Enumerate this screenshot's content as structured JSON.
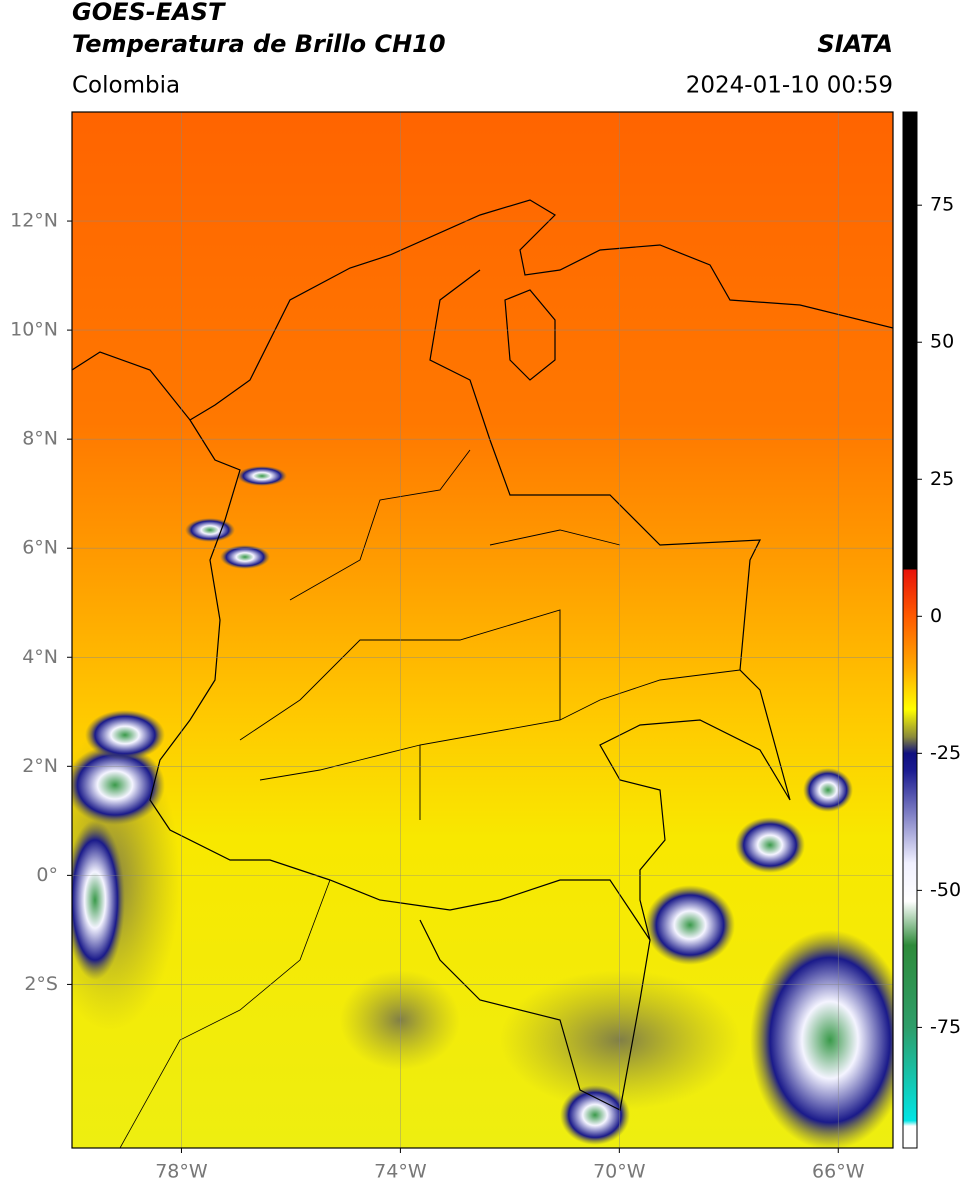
{
  "header": {
    "satellite": "GOES-EAST",
    "product": "Temperatura de Brillo CH10",
    "source": "SIATA",
    "region": "Colombia",
    "datetime": "2024-01-10 00:59"
  },
  "map": {
    "xlim": [
      -80,
      -65
    ],
    "ylim": [
      -5,
      14
    ],
    "grid": true,
    "xticks": [
      {
        "value": -78,
        "label": "78°W"
      },
      {
        "value": -74,
        "label": "74°W"
      },
      {
        "value": -70,
        "label": "70°W"
      },
      {
        "value": -66,
        "label": "66°W"
      }
    ],
    "yticks": [
      {
        "value": -2,
        "label": "2°S"
      },
      {
        "value": 0,
        "label": "0°"
      },
      {
        "value": 2,
        "label": "2°N"
      },
      {
        "value": 4,
        "label": "4°N"
      },
      {
        "value": 6,
        "label": "6°N"
      },
      {
        "value": 8,
        "label": "8°N"
      },
      {
        "value": 10,
        "label": "10°N"
      },
      {
        "value": 12,
        "label": "12°N"
      }
    ]
  },
  "colorbar": {
    "clim": [
      -97,
      92
    ],
    "ticks": [
      75,
      50,
      25,
      0,
      -25,
      -50,
      -75
    ],
    "colorscale": [
      [
        92,
        "#000000"
      ],
      [
        8.5,
        "#000000"
      ],
      [
        8.5,
        "#e8120a"
      ],
      [
        0,
        "#ff5a00"
      ],
      [
        -10,
        "#ffb000"
      ],
      [
        -17,
        "#ffff00"
      ],
      [
        -22,
        "#8a8a3a"
      ],
      [
        -25,
        "#101080"
      ],
      [
        -28,
        "#1a1a90"
      ],
      [
        -45,
        "#f0f0ff"
      ],
      [
        -52,
        "#ffffff"
      ],
      [
        -60,
        "#2e8b3a"
      ],
      [
        -75,
        "#2e9e6a"
      ],
      [
        -92,
        "#00e5e5"
      ],
      [
        -93,
        "#ffffff"
      ],
      [
        -97,
        "#ffffff"
      ]
    ]
  }
}
